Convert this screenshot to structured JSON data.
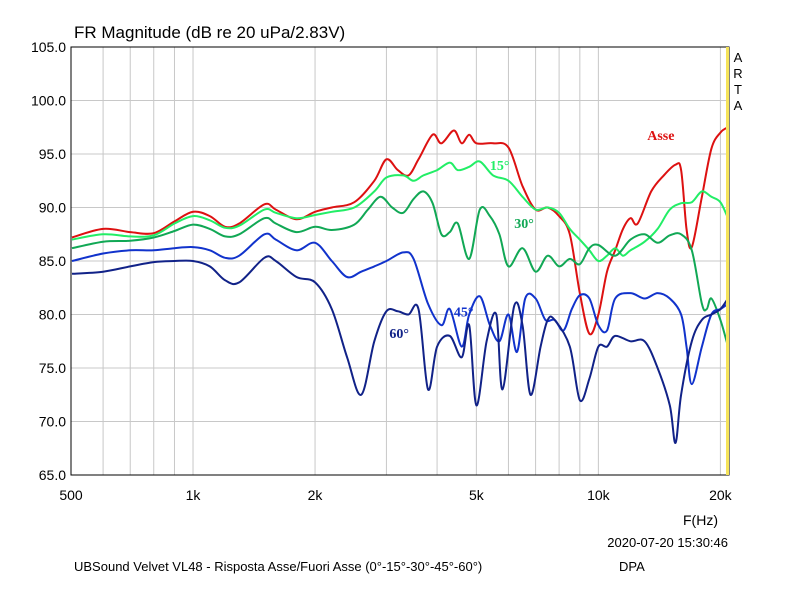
{
  "chart_data": {
    "type": "line",
    "title": "FR Magnitude (dB re 20 uPa/2.83V)",
    "xlabel": "F(Hz)",
    "ylabel": "",
    "x_scale": "log",
    "xlim": [
      500,
      21000
    ],
    "ylim": [
      65,
      105
    ],
    "grid": true,
    "x_ticks": [
      {
        "value": 500,
        "label": "500"
      },
      {
        "value": 1000,
        "label": "1k"
      },
      {
        "value": 2000,
        "label": "2k"
      },
      {
        "value": 5000,
        "label": "5k"
      },
      {
        "value": 10000,
        "label": "10k"
      },
      {
        "value": 20000,
        "label": "20k"
      }
    ],
    "y_ticks": [
      "65.0",
      "70.0",
      "75.0",
      "80.0",
      "85.0",
      "90.0",
      "95.0",
      "100.0",
      "105.0"
    ],
    "watermark": "ARTA",
    "date_stamp": "2020-07-20  15:30:46",
    "caption": "UBSound Velvet VL48 - Risposta Asse/Fuori Asse (0°-15°-30°-45°-60°)",
    "caption_tag": "DPA",
    "series": [
      {
        "name": "Asse",
        "color": "#dd1111",
        "label_at": [
          13200,
          96.3
        ],
        "points": [
          [
            500,
            87.2
          ],
          [
            600,
            88
          ],
          [
            700,
            87.7
          ],
          [
            800,
            87.6
          ],
          [
            900,
            88.7
          ],
          [
            1000,
            89.6
          ],
          [
            1100,
            89.2
          ],
          [
            1200,
            88.2
          ],
          [
            1300,
            88.5
          ],
          [
            1500,
            90.3
          ],
          [
            1600,
            89.8
          ],
          [
            1800,
            88.9
          ],
          [
            2000,
            89.6
          ],
          [
            2200,
            90
          ],
          [
            2500,
            90.5
          ],
          [
            2800,
            92.5
          ],
          [
            3000,
            94.5
          ],
          [
            3200,
            93.5
          ],
          [
            3400,
            93
          ],
          [
            3600,
            94.5
          ],
          [
            3900,
            96.8
          ],
          [
            4100,
            96
          ],
          [
            4400,
            97.2
          ],
          [
            4600,
            96
          ],
          [
            4800,
            96.8
          ],
          [
            5000,
            96
          ],
          [
            5500,
            96
          ],
          [
            6000,
            95.6
          ],
          [
            6500,
            92
          ],
          [
            7000,
            89.8
          ],
          [
            7500,
            90
          ],
          [
            8000,
            89.2
          ],
          [
            8500,
            87.5
          ],
          [
            9000,
            82
          ],
          [
            9500,
            78.2
          ],
          [
            10000,
            80
          ],
          [
            10500,
            84
          ],
          [
            11000,
            86
          ],
          [
            11500,
            88
          ],
          [
            12000,
            89
          ],
          [
            12500,
            88.5
          ],
          [
            13500,
            91.5
          ],
          [
            14500,
            93
          ],
          [
            15500,
            94
          ],
          [
            16000,
            93.5
          ],
          [
            16500,
            88
          ],
          [
            17000,
            86.3
          ],
          [
            18000,
            91
          ],
          [
            19000,
            95.5
          ],
          [
            20000,
            97
          ],
          [
            21000,
            97.5
          ]
        ]
      },
      {
        "name": "15°",
        "color": "#22ee66",
        "label_at": [
          5400,
          93.5
        ],
        "points": [
          [
            500,
            87
          ],
          [
            600,
            87.5
          ],
          [
            700,
            87.3
          ],
          [
            800,
            87.4
          ],
          [
            900,
            88.5
          ],
          [
            1000,
            89.2
          ],
          [
            1100,
            88.8
          ],
          [
            1200,
            88.1
          ],
          [
            1300,
            88.3
          ],
          [
            1500,
            89.8
          ],
          [
            1600,
            89.5
          ],
          [
            1800,
            89
          ],
          [
            2000,
            89.3
          ],
          [
            2200,
            89.6
          ],
          [
            2500,
            90
          ],
          [
            2800,
            91.5
          ],
          [
            3000,
            92.8
          ],
          [
            3300,
            93
          ],
          [
            3500,
            92.5
          ],
          [
            3700,
            93
          ],
          [
            4000,
            93.5
          ],
          [
            4300,
            94.2
          ],
          [
            4500,
            93.5
          ],
          [
            4800,
            93.8
          ],
          [
            5100,
            94.3
          ],
          [
            5500,
            93
          ],
          [
            6000,
            92.5
          ],
          [
            6500,
            91
          ],
          [
            7000,
            89.8
          ],
          [
            7500,
            90
          ],
          [
            8000,
            89.5
          ],
          [
            8500,
            88
          ],
          [
            9000,
            87
          ],
          [
            9500,
            86
          ],
          [
            10000,
            85
          ],
          [
            10500,
            85.5
          ],
          [
            11000,
            86.2
          ],
          [
            11500,
            85.5
          ],
          [
            12000,
            86
          ],
          [
            13000,
            86.8
          ],
          [
            14000,
            88
          ],
          [
            15000,
            89.8
          ],
          [
            16000,
            90.4
          ],
          [
            17000,
            90.5
          ],
          [
            18000,
            91.5
          ],
          [
            19000,
            91
          ],
          [
            20000,
            90.5
          ],
          [
            21000,
            89
          ]
        ]
      },
      {
        "name": "30°",
        "color": "#11a855",
        "label_at": [
          6200,
          88.1
        ],
        "points": [
          [
            500,
            86.2
          ],
          [
            600,
            86.8
          ],
          [
            700,
            86.9
          ],
          [
            800,
            87.2
          ],
          [
            900,
            87.8
          ],
          [
            1000,
            88.4
          ],
          [
            1100,
            88
          ],
          [
            1200,
            87.3
          ],
          [
            1300,
            87.5
          ],
          [
            1500,
            89
          ],
          [
            1600,
            88.5
          ],
          [
            1800,
            87.7
          ],
          [
            2000,
            88.2
          ],
          [
            2200,
            87.9
          ],
          [
            2500,
            88.4
          ],
          [
            2700,
            89.8
          ],
          [
            2900,
            91
          ],
          [
            3100,
            90
          ],
          [
            3300,
            89.5
          ],
          [
            3500,
            90.8
          ],
          [
            3700,
            91.5
          ],
          [
            3900,
            90.4
          ],
          [
            4100,
            87.5
          ],
          [
            4300,
            87.7
          ],
          [
            4500,
            88.5
          ],
          [
            4800,
            85.2
          ],
          [
            5100,
            89.8
          ],
          [
            5400,
            89.2
          ],
          [
            5700,
            87.5
          ],
          [
            6000,
            84.5
          ],
          [
            6500,
            86.2
          ],
          [
            7000,
            84
          ],
          [
            7500,
            85.5
          ],
          [
            8000,
            84.5
          ],
          [
            8500,
            85.2
          ],
          [
            9000,
            84.7
          ],
          [
            9500,
            86.2
          ],
          [
            10000,
            86.5
          ],
          [
            11000,
            85.5
          ],
          [
            12000,
            87
          ],
          [
            13000,
            87.5
          ],
          [
            14000,
            86.7
          ],
          [
            15000,
            87.4
          ],
          [
            16000,
            87.5
          ],
          [
            17000,
            86
          ],
          [
            18000,
            81
          ],
          [
            18500,
            80.5
          ],
          [
            19000,
            81.5
          ],
          [
            20000,
            79.5
          ],
          [
            21000,
            77
          ]
        ]
      },
      {
        "name": "45°",
        "color": "#1133cc",
        "label_at": [
          4400,
          79.8
        ],
        "points": [
          [
            500,
            85
          ],
          [
            600,
            85.7
          ],
          [
            700,
            86
          ],
          [
            800,
            86
          ],
          [
            900,
            86.2
          ],
          [
            1000,
            86.3
          ],
          [
            1100,
            86
          ],
          [
            1200,
            85.3
          ],
          [
            1300,
            85.5
          ],
          [
            1500,
            87.5
          ],
          [
            1600,
            87
          ],
          [
            1800,
            86
          ],
          [
            2000,
            86.7
          ],
          [
            2200,
            85
          ],
          [
            2400,
            83.5
          ],
          [
            2600,
            84
          ],
          [
            2800,
            84.5
          ],
          [
            3000,
            85
          ],
          [
            3300,
            85.8
          ],
          [
            3500,
            85.2
          ],
          [
            3800,
            81
          ],
          [
            4100,
            79
          ],
          [
            4300,
            80.5
          ],
          [
            4600,
            77
          ],
          [
            4800,
            80
          ],
          [
            5100,
            81.7
          ],
          [
            5400,
            79
          ],
          [
            5700,
            77.5
          ],
          [
            6000,
            80
          ],
          [
            6300,
            76.5
          ],
          [
            6600,
            81.5
          ],
          [
            7000,
            81.5
          ],
          [
            7400,
            79.5
          ],
          [
            7800,
            79.5
          ],
          [
            8200,
            78.5
          ],
          [
            8600,
            80.5
          ],
          [
            9000,
            81.8
          ],
          [
            9500,
            81.5
          ],
          [
            10000,
            79
          ],
          [
            10500,
            78.5
          ],
          [
            11000,
            81.5
          ],
          [
            12000,
            82
          ],
          [
            13000,
            81.5
          ],
          [
            14000,
            82
          ],
          [
            15000,
            81.5
          ],
          [
            16000,
            80
          ],
          [
            16500,
            77
          ],
          [
            17000,
            73.5
          ],
          [
            18000,
            77
          ],
          [
            19000,
            80
          ],
          [
            20000,
            80.5
          ],
          [
            21000,
            81
          ]
        ]
      },
      {
        "name": "60°",
        "color": "#112288",
        "label_at": [
          3050,
          77.8
        ],
        "points": [
          [
            500,
            83.8
          ],
          [
            600,
            84
          ],
          [
            700,
            84.5
          ],
          [
            800,
            84.9
          ],
          [
            900,
            85
          ],
          [
            1000,
            85
          ],
          [
            1100,
            84.5
          ],
          [
            1200,
            83.2
          ],
          [
            1300,
            83
          ],
          [
            1500,
            85.3
          ],
          [
            1600,
            85
          ],
          [
            1800,
            83.5
          ],
          [
            2000,
            83
          ],
          [
            2200,
            80.5
          ],
          [
            2400,
            76
          ],
          [
            2600,
            72.5
          ],
          [
            2800,
            77.5
          ],
          [
            3000,
            80.3
          ],
          [
            3200,
            80.3
          ],
          [
            3400,
            80
          ],
          [
            3600,
            80.5
          ],
          [
            3800,
            73
          ],
          [
            4000,
            77
          ],
          [
            4300,
            78
          ],
          [
            4600,
            76
          ],
          [
            4800,
            79
          ],
          [
            5000,
            71.5
          ],
          [
            5300,
            77.5
          ],
          [
            5600,
            80
          ],
          [
            5800,
            73
          ],
          [
            6200,
            80.8
          ],
          [
            6500,
            79
          ],
          [
            6800,
            72.5
          ],
          [
            7200,
            77
          ],
          [
            7500,
            79.5
          ],
          [
            7800,
            79.5
          ],
          [
            8500,
            77
          ],
          [
            9000,
            72
          ],
          [
            9500,
            74
          ],
          [
            10000,
            77
          ],
          [
            10500,
            77
          ],
          [
            11000,
            78
          ],
          [
            12000,
            77.5
          ],
          [
            13000,
            77.5
          ],
          [
            14000,
            75
          ],
          [
            15000,
            71.5
          ],
          [
            15500,
            68
          ],
          [
            16000,
            72.5
          ],
          [
            17000,
            77.5
          ],
          [
            18000,
            79.5
          ],
          [
            19000,
            80
          ],
          [
            20000,
            80.5
          ],
          [
            21000,
            81.5
          ]
        ]
      }
    ]
  }
}
